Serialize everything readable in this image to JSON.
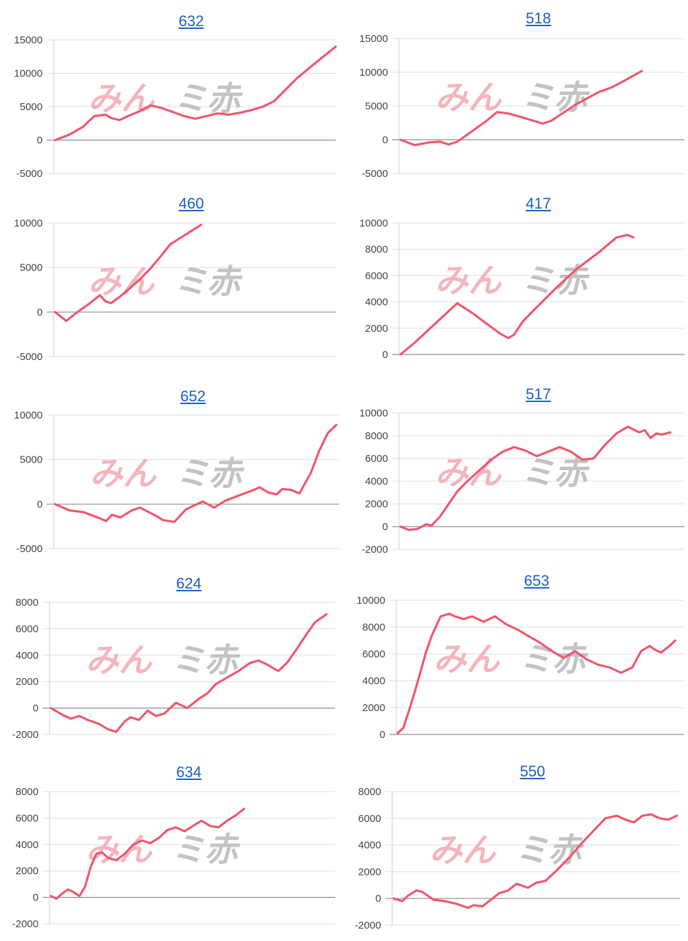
{
  "style": {
    "line_color": "#f0566f",
    "title_color": "#1a5fc2",
    "grid_color": "#dddddd",
    "axis_color": "#9a9a9a",
    "watermark_left_color": "#f3a9b2",
    "watermark_right_color": "#b9b9b9"
  },
  "watermark": {
    "left": "みん",
    "right": "ミ赤"
  },
  "chart_data": [
    {
      "type": "line",
      "title": "632",
      "ylim": [
        -5000,
        15000
      ],
      "yticks": [
        15000,
        10000,
        5000,
        0,
        -5000
      ],
      "grid": true,
      "n_points": 100,
      "x": [
        0,
        5,
        10,
        14,
        18,
        20,
        23,
        26,
        30,
        34,
        38,
        42,
        46,
        50,
        54,
        58,
        62,
        66,
        70,
        74,
        78,
        82,
        86,
        92,
        100
      ],
      "y": [
        0,
        800,
        2000,
        3600,
        3800,
        3300,
        3000,
        3600,
        4300,
        5200,
        4800,
        4200,
        3600,
        3200,
        3600,
        4000,
        3800,
        4100,
        4500,
        5000,
        5800,
        7500,
        9200,
        11300,
        14000
      ]
    },
    {
      "type": "line",
      "title": "518",
      "ylim": [
        -5000,
        15000
      ],
      "yticks": [
        15000,
        10000,
        5000,
        0,
        -5000
      ],
      "grid": true,
      "n_points": 100,
      "x": [
        0,
        5,
        10,
        14,
        17,
        20,
        24,
        30,
        34,
        38,
        43,
        47,
        50,
        53,
        57,
        62,
        66,
        70,
        74,
        79,
        85
      ],
      "y": [
        0,
        -800,
        -400,
        -300,
        -700,
        -300,
        900,
        2700,
        4100,
        3900,
        3300,
        2800,
        2400,
        2800,
        3900,
        5300,
        6200,
        7100,
        7700,
        8800,
        10200
      ]
    },
    {
      "type": "line",
      "title": "460",
      "ylim": [
        -5000,
        10000
      ],
      "yticks": [
        10000,
        5000,
        0,
        -5000
      ],
      "grid": true,
      "n_points": 100,
      "x": [
        0,
        4,
        8,
        12,
        16,
        18,
        20,
        23,
        26,
        30,
        34,
        38,
        41,
        45,
        48,
        52
      ],
      "y": [
        0,
        -1000,
        0,
        900,
        1900,
        1200,
        1000,
        1700,
        2500,
        3600,
        4900,
        6400,
        7600,
        8400,
        9000,
        9800
      ]
    },
    {
      "type": "line",
      "title": "417",
      "ylim": [
        0,
        10000
      ],
      "yticks": [
        10000,
        8000,
        6000,
        4000,
        2000,
        0
      ],
      "grid": true,
      "n_points": 100,
      "x": [
        0,
        5,
        10,
        15,
        20,
        25,
        30,
        35,
        38,
        40,
        43,
        48,
        55,
        62,
        70,
        76,
        80,
        82
      ],
      "y": [
        0,
        900,
        1900,
        2900,
        3900,
        3200,
        2400,
        1600,
        1250,
        1500,
        2500,
        3600,
        5100,
        6500,
        7800,
        8900,
        9100,
        8900
      ]
    },
    {
      "type": "line",
      "title": "652",
      "ylim": [
        -5000,
        10000
      ],
      "yticks": [
        10000,
        5000,
        0,
        -5000
      ],
      "grid": true,
      "n_points": 100,
      "x": [
        0,
        5,
        10,
        15,
        18,
        20,
        23,
        27,
        30,
        33,
        36,
        38,
        42,
        46,
        48,
        52,
        56,
        60,
        65,
        70,
        72,
        75,
        78,
        80,
        83,
        86,
        90,
        93,
        96,
        99
      ],
      "y": [
        0,
        -700,
        -900,
        -1500,
        -1900,
        -1200,
        -1500,
        -700,
        -400,
        -900,
        -1400,
        -1800,
        -2000,
        -600,
        -300,
        300,
        -400,
        400,
        1000,
        1600,
        1900,
        1300,
        1100,
        1700,
        1600,
        1200,
        3500,
        6000,
        8000,
        8900
      ]
    },
    {
      "type": "line",
      "title": "517",
      "ylim": [
        -2000,
        10000
      ],
      "yticks": [
        10000,
        8000,
        6000,
        4000,
        2000,
        0,
        -2000
      ],
      "grid": true,
      "n_points": 100,
      "x": [
        0,
        3,
        6,
        9,
        11,
        14,
        17,
        20,
        24,
        28,
        32,
        36,
        40,
        44,
        48,
        52,
        56,
        60,
        64,
        68,
        72,
        76,
        80,
        84,
        86,
        88,
        90,
        92,
        95
      ],
      "y": [
        0,
        -300,
        -200,
        200,
        100,
        900,
        2000,
        3100,
        4100,
        5000,
        5900,
        6600,
        7000,
        6700,
        6200,
        6600,
        7000,
        6600,
        5900,
        6000,
        7200,
        8200,
        8800,
        8300,
        8500,
        7800,
        8200,
        8100,
        8300
      ]
    },
    {
      "type": "line",
      "title": "624",
      "ylim": [
        -2000,
        8000
      ],
      "yticks": [
        8000,
        6000,
        4000,
        2000,
        0,
        -2000
      ],
      "grid": true,
      "n_points": 100,
      "x": [
        0,
        4,
        7,
        10,
        13,
        17,
        20,
        23,
        26,
        28,
        31,
        34,
        37,
        40,
        44,
        48,
        52,
        55,
        58,
        62,
        66,
        70,
        73,
        76,
        80,
        83,
        86,
        90,
        93,
        97
      ],
      "y": [
        0,
        -500,
        -800,
        -600,
        -900,
        -1200,
        -1600,
        -1800,
        -1000,
        -700,
        -900,
        -200,
        -600,
        -400,
        400,
        0,
        700,
        1100,
        1800,
        2300,
        2800,
        3400,
        3600,
        3300,
        2800,
        3400,
        4300,
        5600,
        6500,
        7100
      ]
    },
    {
      "type": "line",
      "title": "653",
      "ylim": [
        0,
        10000
      ],
      "yticks": [
        10000,
        8000,
        6000,
        4000,
        2000,
        0
      ],
      "grid": true,
      "n_points": 100,
      "x": [
        0,
        2,
        4,
        6,
        8,
        10,
        12,
        15,
        18,
        20,
        23,
        26,
        30,
        34,
        38,
        42,
        46,
        50,
        54,
        58,
        62,
        66,
        70,
        74,
        78,
        82,
        85,
        88,
        90,
        92,
        95,
        97
      ],
      "y": [
        100,
        500,
        1800,
        3200,
        4700,
        6200,
        7400,
        8800,
        9000,
        8800,
        8600,
        8800,
        8400,
        8800,
        8200,
        7800,
        7300,
        6800,
        6200,
        5700,
        6200,
        5600,
        5200,
        5000,
        4600,
        5000,
        6200,
        6600,
        6300,
        6100,
        6600,
        7000
      ]
    },
    {
      "type": "line",
      "title": "634",
      "ylim": [
        -2000,
        8000
      ],
      "yticks": [
        8000,
        6000,
        4000,
        2000,
        0,
        -2000
      ],
      "grid": true,
      "n_points": 100,
      "x": [
        0,
        2,
        4,
        6,
        8,
        10,
        12,
        14,
        16,
        18,
        20,
        23,
        26,
        29,
        32,
        35,
        38,
        41,
        44,
        47,
        50,
        53,
        56,
        59,
        62,
        65,
        68
      ],
      "y": [
        100,
        -100,
        300,
        600,
        400,
        100,
        800,
        2300,
        3300,
        3400,
        3000,
        2800,
        3300,
        4000,
        4300,
        4100,
        4500,
        5100,
        5300,
        5000,
        5400,
        5800,
        5400,
        5300,
        5800,
        6200,
        6700
      ]
    },
    {
      "type": "line",
      "title": "550",
      "ylim": [
        -2000,
        8000
      ],
      "yticks": [
        8000,
        6000,
        4000,
        2000,
        0,
        -2000
      ],
      "grid": true,
      "n_points": 100,
      "x": [
        0,
        3,
        5,
        8,
        10,
        14,
        18,
        22,
        26,
        28,
        31,
        34,
        37,
        40,
        43,
        47,
        50,
        53,
        57,
        62,
        66,
        70,
        74,
        78,
        81,
        84,
        87,
        90,
        93,
        96,
        99
      ],
      "y": [
        0,
        -200,
        200,
        600,
        500,
        -100,
        -200,
        -400,
        -700,
        -500,
        -600,
        -100,
        400,
        600,
        1100,
        800,
        1200,
        1300,
        2100,
        3200,
        4200,
        5100,
        6000,
        6200,
        5900,
        5700,
        6200,
        6300,
        6000,
        5900,
        6200
      ]
    }
  ]
}
